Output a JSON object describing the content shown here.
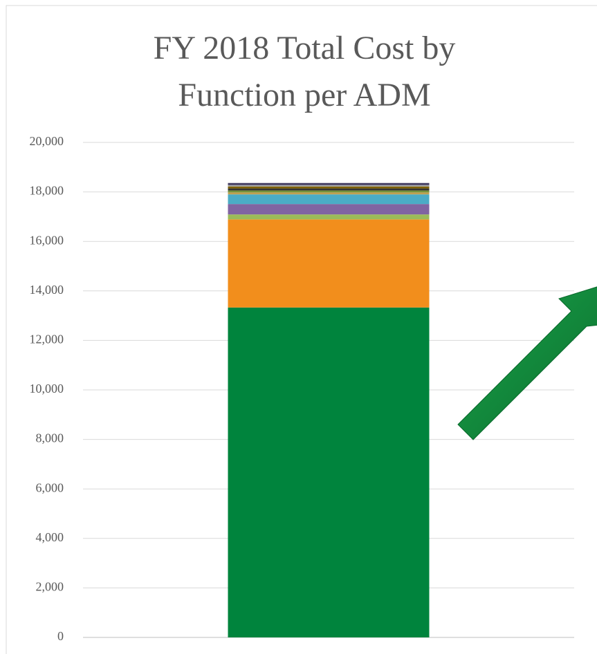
{
  "chart_data": {
    "type": "stacked-bar",
    "title": "FY 2018 Total Cost by Function per ADM",
    "categories": [
      null
    ],
    "series": [
      {
        "color": "#00843d",
        "values": [
          13330
        ]
      },
      {
        "color": "#f28e1c",
        "values": [
          3560
        ]
      },
      {
        "color": "#9bbb59",
        "values": [
          200
        ]
      },
      {
        "color": "#8064a2",
        "values": [
          420
        ]
      },
      {
        "color": "#4bacc6",
        "values": [
          390
        ]
      },
      {
        "color": "#c0a050",
        "values": [
          80
        ]
      },
      {
        "color": "#76923c",
        "values": [
          80
        ]
      },
      {
        "color": "#333333",
        "values": [
          80
        ]
      },
      {
        "color": "#7f6000",
        "values": [
          80
        ]
      },
      {
        "color": "#a5a5a5",
        "values": [
          60
        ]
      },
      {
        "color": "#403a60",
        "values": [
          80
        ]
      }
    ],
    "ylim": [
      0,
      20000
    ],
    "yticks": [
      0,
      {
        "value": 2000,
        "label": "2,000"
      },
      {
        "value": 4000,
        "label": "4,000"
      },
      {
        "value": 6000,
        "label": "6,000"
      },
      {
        "value": 8000,
        "label": "8,000"
      },
      {
        "value": 10000,
        "label": "10,000"
      },
      {
        "value": 12000,
        "label": "12,000"
      },
      {
        "value": 14000,
        "label": "14,000"
      },
      {
        "value": 16000,
        "label": "16,000"
      },
      {
        "value": 18000,
        "label": "18,000"
      },
      {
        "value": 20000,
        "label": "20,000"
      }
    ],
    "grid": true
  }
}
